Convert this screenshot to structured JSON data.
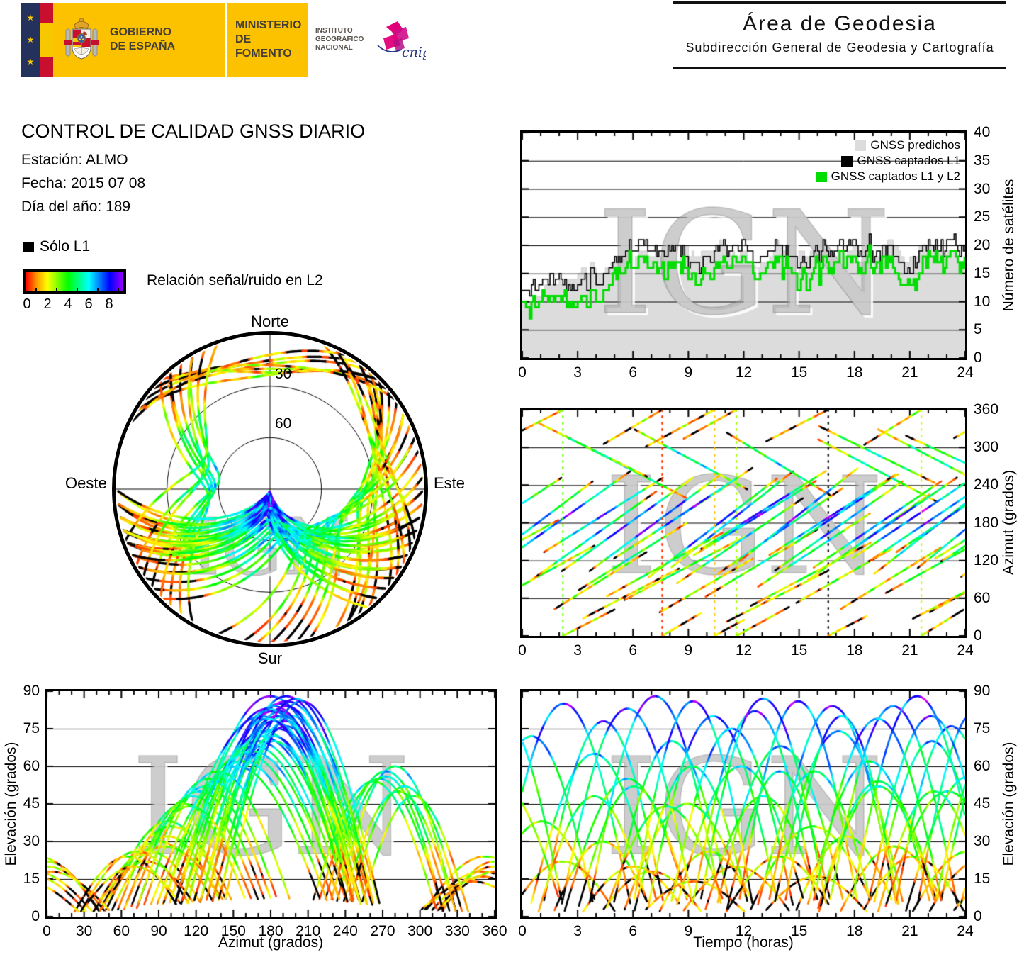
{
  "banner": {
    "gobierno": [
      "GOBIERNO",
      "DE ESPAÑA"
    ],
    "ministerio": [
      "MINISTERIO",
      "DE FOMENTO"
    ],
    "instituto": [
      "INSTITUTO",
      "GEOGRÁFICO",
      "NACIONAL"
    ],
    "cnig": "cnig",
    "stars": "★",
    "colors": {
      "eu_blue": "#24315c",
      "flag_red": "#c8102e",
      "flag_yellow": "#f7c800",
      "box_yellow": "#fcc200",
      "cnig_magenta": "#e0007a",
      "cnig_blue": "#283583"
    }
  },
  "header_right": {
    "title": "Área de Geodesia",
    "subtitle": "Subdirección General de Geodesia y Cartografía"
  },
  "report": {
    "title": "CONTROL DE CALIDAD GNSS DIARIO",
    "station": "Estación: ALMO",
    "date": "Fecha: 2015 07 08",
    "doy": "Día del año: 189"
  },
  "legend": {
    "solo_l1": "Sólo L1",
    "colorbar": {
      "label": "Relación señal/ruido en L2",
      "ticks": [
        "0",
        "2",
        "4",
        "6",
        "8"
      ],
      "stops": [
        "#ff0000",
        "#ffff00",
        "#00ff00",
        "#00ffff",
        "#0000ff",
        "#9b00ff"
      ]
    }
  },
  "watermark": "IGN",
  "chart_data": {
    "type": "multi",
    "colormap": {
      "0": "#ff0000",
      "2": "#ffff00",
      "4": "#00ff00",
      "6": "#00ffff",
      "8": "#0000ff",
      "max": "#bf00ff",
      "missing_L2": "#000000"
    },
    "passes": [
      [
        -3.0,
        7.0,
        95,
        250,
        72
      ],
      [
        -2.2,
        6.5,
        45,
        150,
        38
      ],
      [
        -1.5,
        7.5,
        110,
        265,
        85
      ],
      [
        -0.8,
        6.0,
        315,
        45,
        22
      ],
      [
        0.3,
        7.2,
        85,
        235,
        65
      ],
      [
        1.0,
        6.8,
        130,
        255,
        78
      ],
      [
        1.6,
        5.5,
        40,
        140,
        30
      ],
      [
        2.2,
        7.0,
        320,
        215,
        55
      ],
      [
        2.9,
        6.3,
        70,
        185,
        52
      ],
      [
        3.5,
        7.4,
        100,
        260,
        88
      ],
      [
        4.1,
        5.8,
        300,
        40,
        18
      ],
      [
        4.8,
        6.6,
        120,
        245,
        70
      ],
      [
        5.4,
        7.1,
        55,
        165,
        45
      ],
      [
        6.0,
        6.4,
        330,
        230,
        60
      ],
      [
        6.7,
        7.3,
        90,
        255,
        80
      ],
      [
        7.3,
        5.6,
        35,
        130,
        26
      ],
      [
        7.9,
        6.9,
        105,
        265,
        75
      ],
      [
        8.5,
        6.2,
        310,
        50,
        20
      ],
      [
        9.1,
        7.0,
        125,
        250,
        82
      ],
      [
        9.8,
        6.5,
        60,
        175,
        48
      ],
      [
        10.4,
        7.2,
        95,
        240,
        68
      ],
      [
        11.0,
        5.9,
        325,
        220,
        58
      ],
      [
        11.6,
        6.7,
        115,
        270,
        86
      ],
      [
        12.2,
        7.1,
        45,
        155,
        36
      ],
      [
        12.9,
        6.0,
        305,
        35,
        16
      ],
      [
        13.5,
        7.3,
        100,
        250,
        74
      ],
      [
        14.1,
        6.4,
        135,
        260,
        80
      ],
      [
        14.7,
        5.7,
        50,
        145,
        32
      ],
      [
        15.3,
        7.0,
        85,
        230,
        62
      ],
      [
        15.9,
        6.8,
        315,
        210,
        54
      ],
      [
        16.5,
        7.2,
        110,
        255,
        84
      ],
      [
        17.1,
        6.1,
        40,
        150,
        28
      ],
      [
        17.7,
        7.4,
        120,
        265,
        88
      ],
      [
        18.3,
        5.8,
        300,
        45,
        24
      ],
      [
        18.9,
        6.6,
        95,
        245,
        70
      ],
      [
        19.5,
        7.1,
        65,
        180,
        50
      ],
      [
        20.1,
        6.3,
        130,
        255,
        76
      ],
      [
        20.7,
        7.0,
        320,
        225,
        56
      ],
      [
        21.3,
        6.5,
        105,
        260,
        82
      ],
      [
        21.9,
        5.6,
        35,
        125,
        22
      ],
      [
        22.5,
        7.2,
        115,
        250,
        78
      ],
      [
        23.1,
        6.4,
        310,
        55,
        18
      ],
      [
        23.6,
        7.0,
        90,
        240,
        66
      ],
      [
        -4.5,
        6.8,
        125,
        255,
        80
      ],
      [
        -5.2,
        7.5,
        70,
        190,
        55
      ],
      [
        0.8,
        6.2,
        340,
        250,
        48
      ],
      [
        3.1,
        5.9,
        25,
        115,
        20
      ],
      [
        5.9,
        6.7,
        140,
        270,
        86
      ],
      [
        8.2,
        7.3,
        80,
        225,
        60
      ],
      [
        10.9,
        6.1,
        20,
        110,
        24
      ],
      [
        13.2,
        7.2,
        125,
        260,
        84
      ],
      [
        16.0,
        6.6,
        335,
        240,
        52
      ],
      [
        18.6,
        7.1,
        115,
        255,
        80
      ],
      [
        21.0,
        6.3,
        25,
        120,
        26
      ],
      [
        2.0,
        7.4,
        100,
        255,
        83
      ],
      [
        6.3,
        6.0,
        295,
        30,
        14
      ],
      [
        9.5,
        7.1,
        135,
        265,
        87
      ],
      [
        12.6,
        6.5,
        75,
        200,
        58
      ],
      [
        15.6,
        7.3,
        105,
        250,
        79
      ],
      [
        19.2,
        6.2,
        330,
        235,
        50
      ],
      [
        22.2,
        6.9,
        120,
        245,
        72
      ],
      [
        4.4,
        6.8,
        60,
        170,
        44
      ]
    ],
    "charts": [
      {
        "id": "sat_count",
        "type": "step-area",
        "xlim": [
          0,
          24
        ],
        "ylim": [
          0,
          40
        ],
        "xticks": [
          0,
          3,
          6,
          9,
          12,
          15,
          18,
          21,
          24
        ],
        "yticks": [
          0,
          5,
          10,
          15,
          20,
          25,
          30,
          35,
          40
        ],
        "xlabel": "",
        "ylabel": "Número de satélites",
        "legend": [
          {
            "label": "GNSS predichos",
            "color": "#dcdcdc"
          },
          {
            "label": "GNSS captados L1",
            "color": "#000000"
          },
          {
            "label": "GNSS captados L1 y L2",
            "color": "#00dd00"
          }
        ],
        "watermark": "IGN",
        "base_offset": 4
      },
      {
        "id": "azimut_tiempo",
        "type": "tracks",
        "xlim": [
          0,
          24
        ],
        "ylim": [
          0,
          360
        ],
        "xticks": [
          0,
          3,
          6,
          9,
          12,
          15,
          18,
          21,
          24
        ],
        "yticks": [
          0,
          60,
          120,
          180,
          240,
          300,
          360
        ],
        "xlabel": "",
        "ylabel": "Azimut (grados)",
        "watermark": "IGN"
      },
      {
        "id": "skyplot",
        "type": "polar-tracks",
        "compass": {
          "n": "Norte",
          "s": "Sur",
          "e": "Este",
          "w": "Oeste"
        },
        "rings": [
          "30",
          "60"
        ],
        "watermark": "IGN"
      },
      {
        "id": "elev_azimut",
        "type": "tracks",
        "xlim": [
          0,
          360
        ],
        "ylim": [
          0,
          90
        ],
        "xticks": [
          0,
          30,
          60,
          90,
          120,
          150,
          180,
          210,
          240,
          270,
          300,
          330,
          360
        ],
        "yticks": [
          0,
          15,
          30,
          45,
          60,
          75,
          90
        ],
        "xlabel": "Azimut (grados)",
        "ylabel": "Elevación (grados)",
        "watermark": "IGN"
      },
      {
        "id": "elev_tiempo",
        "type": "tracks",
        "xlim": [
          0,
          24
        ],
        "ylim": [
          0,
          90
        ],
        "xticks": [
          0,
          3,
          6,
          9,
          12,
          15,
          18,
          21,
          24
        ],
        "yticks": [
          0,
          15,
          30,
          45,
          60,
          75,
          90
        ],
        "xlabel": "Tiempo (horas)",
        "ylabel": "Elevación (grados)",
        "watermark": "IGN"
      }
    ]
  }
}
